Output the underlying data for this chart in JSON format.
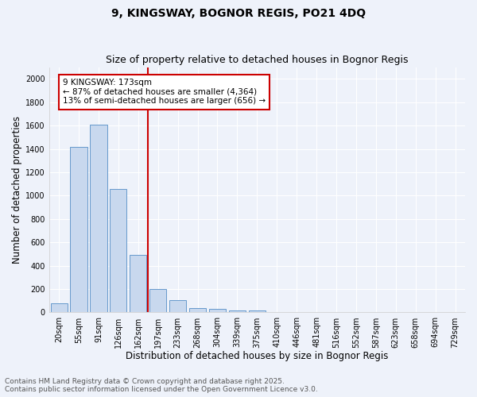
{
  "title": "9, KINGSWAY, BOGNOR REGIS, PO21 4DQ",
  "subtitle": "Size of property relative to detached houses in Bognor Regis",
  "xlabel": "Distribution of detached houses by size in Bognor Regis",
  "ylabel": "Number of detached properties",
  "categories": [
    "20sqm",
    "55sqm",
    "91sqm",
    "126sqm",
    "162sqm",
    "197sqm",
    "233sqm",
    "268sqm",
    "304sqm",
    "339sqm",
    "375sqm",
    "410sqm",
    "446sqm",
    "481sqm",
    "516sqm",
    "552sqm",
    "587sqm",
    "623sqm",
    "658sqm",
    "694sqm",
    "729sqm"
  ],
  "values": [
    80,
    1420,
    1610,
    1055,
    490,
    200,
    105,
    40,
    30,
    20,
    20,
    0,
    0,
    0,
    0,
    0,
    0,
    0,
    0,
    0,
    0
  ],
  "bar_color": "#c8d8ee",
  "bar_edge_color": "#6699cc",
  "vline_label": "9 KINGSWAY: 173sqm",
  "annotation_line1": "← 87% of detached houses are smaller (4,364)",
  "annotation_line2": "13% of semi-detached houses are larger (656) →",
  "annotation_box_color": "#ffffff",
  "annotation_box_edge": "#cc0000",
  "vline_color": "#cc0000",
  "vline_pos": 4.5,
  "ylim": [
    0,
    2100
  ],
  "yticks": [
    0,
    200,
    400,
    600,
    800,
    1000,
    1200,
    1400,
    1600,
    1800,
    2000
  ],
  "background_color": "#eef2fa",
  "grid_color": "#ffffff",
  "footer_line1": "Contains HM Land Registry data © Crown copyright and database right 2025.",
  "footer_line2": "Contains public sector information licensed under the Open Government Licence v3.0.",
  "title_fontsize": 10,
  "subtitle_fontsize": 9,
  "axis_label_fontsize": 8.5,
  "tick_fontsize": 7,
  "footer_fontsize": 6.5,
  "ann_fontsize": 7.5
}
